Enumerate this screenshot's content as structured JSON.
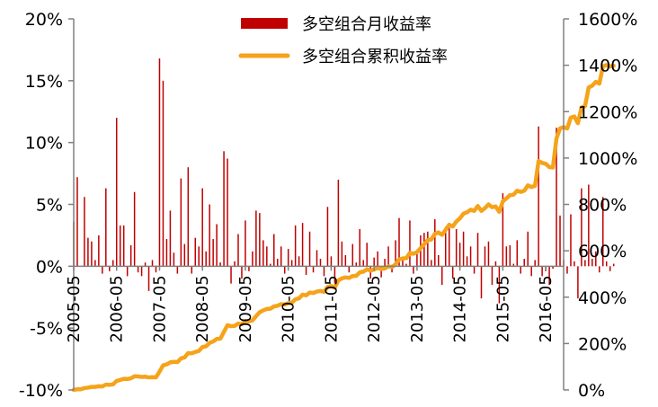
{
  "chart_data": {
    "type": "bar+line",
    "title": "",
    "xlabel": "",
    "ylabel": "",
    "y_left": {
      "min": -10,
      "max": 20,
      "ticks": [
        "20%",
        "15%",
        "10%",
        "5%",
        "0%",
        "-5%",
        "-10%"
      ]
    },
    "y_right": {
      "min": 0,
      "max": 1600,
      "ticks": [
        "1600%",
        "1400%",
        "1200%",
        "1000%",
        "800%",
        "600%",
        "400%",
        "200%",
        "0%"
      ]
    },
    "x_ticks": [
      "2005-05",
      "2006-05",
      "2007-05",
      "2008-05",
      "2009-05",
      "2010-05",
      "2011-05",
      "2012-05",
      "2013-05",
      "2014-05",
      "2015-05",
      "2016-05"
    ],
    "x_start": "2005-05",
    "x_end": "2016-10",
    "legend": {
      "bar_label": "多空组合月收益率",
      "line_label": "多空组合累积收益率",
      "position": "top-center"
    },
    "colors": {
      "bar": "#c00000",
      "line": "#f5a31a",
      "axis": "#808080"
    },
    "monthly_return_pct": [
      3.6,
      7.2,
      0.0,
      5.6,
      2.3,
      2.0,
      0.5,
      2.5,
      -0.6,
      6.3,
      -0.4,
      0.5,
      12.0,
      3.3,
      3.3,
      -0.8,
      1.7,
      6.0,
      -0.5,
      -0.8,
      0.3,
      -2.0,
      0.5,
      -0.5,
      16.8,
      15.0,
      2.2,
      4.5,
      1.1,
      -0.6,
      7.1,
      1.8,
      8.0,
      -0.6,
      2.3,
      1.6,
      6.3,
      1.2,
      5.0,
      2.2,
      3.4,
      0.3,
      9.3,
      8.7,
      -1.4,
      0.4,
      2.6,
      -1.0,
      3.7,
      -0.4,
      1.2,
      4.5,
      4.3,
      2.1,
      1.6,
      0.2,
      2.6,
      0.6,
      1.6,
      -0.6,
      1.4,
      0.5,
      3.3,
      0.8,
      3.5,
      -0.7,
      2.8,
      -0.5,
      1.3,
      0.6,
      -0.8,
      4.8,
      0.8,
      -1.4,
      7.0,
      2.0,
      0.9,
      -0.5,
      1.8,
      0.3,
      3.0,
      0.5,
      1.9,
      -1.0,
      0.7,
      1.2,
      -0.9,
      0.6,
      1.6,
      -0.5,
      2.1,
      3.9,
      0.6,
      0.2,
      3.7,
      -0.6,
      1.0,
      2.5,
      2.7,
      2.8,
      0.5,
      3.8,
      0.9,
      -1.5,
      3.2,
      3.3,
      -1.0,
      3.0,
      1.9,
      2.8,
      0.8,
      1.6,
      -0.6,
      2.7,
      -2.6,
      1.6,
      2.0,
      -1.5,
      0.4,
      -3.0,
      5.9,
      1.6,
      1.7,
      0.2,
      2.1,
      -0.6,
      0.6,
      2.8,
      -0.8,
      0.5,
      11.3,
      -0.8,
      -0.4,
      -1.5,
      -0.2,
      11.2,
      4.1,
      0.5,
      -0.6,
      4.2,
      0.4,
      -2.6,
      6.3,
      0.5,
      6.6,
      0.6,
      1.2,
      -0.5,
      5.6,
      0.4,
      -0.4,
      0.2
    ],
    "cumulative_return_pct": [
      0,
      3,
      3,
      8,
      10,
      13,
      13,
      16,
      15,
      23,
      22,
      24,
      39,
      43,
      48,
      47,
      50,
      59,
      58,
      56,
      57,
      54,
      55,
      54,
      79,
      106,
      110,
      119,
      121,
      120,
      136,
      140,
      159,
      158,
      164,
      168,
      185,
      188,
      203,
      209,
      220,
      221,
      250,
      279,
      275,
      276,
      286,
      283,
      297,
      296,
      300,
      318,
      335,
      343,
      349,
      350,
      360,
      363,
      370,
      368,
      374,
      376,
      391,
      395,
      411,
      408,
      420,
      418,
      424,
      427,
      423,
      444,
      448,
      441,
      472,
      481,
      485,
      483,
      491,
      492,
      507,
      510,
      520,
      515,
      519,
      526,
      521,
      524,
      533,
      530,
      541,
      563,
      567,
      568,
      591,
      587,
      594,
      611,
      628,
      646,
      649,
      673,
      679,
      669,
      690,
      712,
      705,
      726,
      740,
      760,
      766,
      777,
      772,
      793,
      772,
      784,
      800,
      788,
      791,
      768,
      813,
      826,
      840,
      842,
      859,
      854,
      859,
      882,
      875,
      880,
      987,
      979,
      975,
      961,
      959,
      1084,
      1128,
      1133,
      1127,
      1174,
      1179,
      1150,
      1218,
      1224,
      1304,
      1312,
      1328,
      1321,
      1395,
      1401,
      1395,
      1398
    ]
  }
}
